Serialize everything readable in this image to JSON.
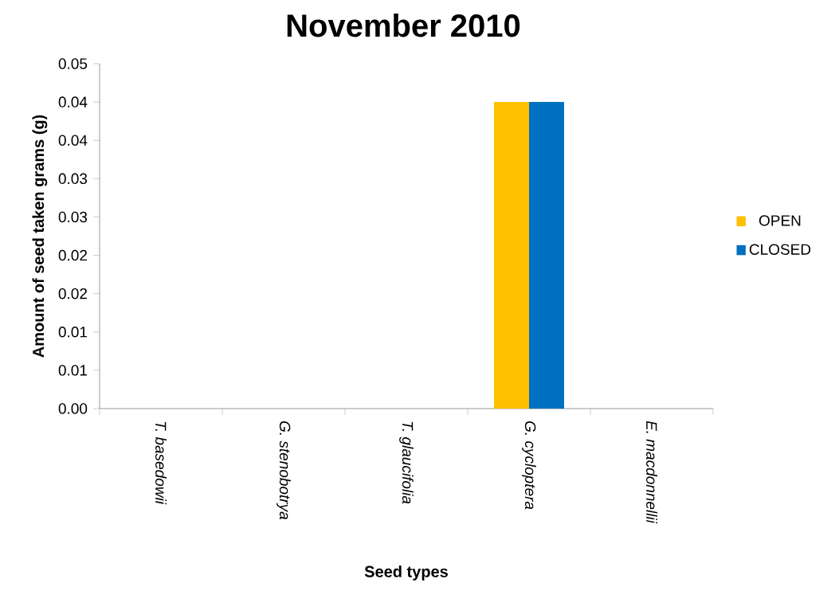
{
  "chart_data": {
    "type": "bar",
    "title": "November 2010",
    "xlabel": "Seed types",
    "ylabel": "Amount of seed taken grams (g)",
    "categories": [
      "*T. basedowii*",
      "*G. stenobotrya*",
      "*T. glaucifolia*",
      "*G. cycloptera*",
      "*E. macdonnellii*"
    ],
    "series": [
      {
        "name": "OPEN",
        "color": "#ffc000",
        "values": [
          0,
          0,
          0,
          0.04,
          0
        ]
      },
      {
        "name": "CLOSED",
        "color": "#0070c0",
        "values": [
          0,
          0,
          0,
          0.04,
          0
        ]
      }
    ],
    "ylim": [
      0,
      0.045
    ],
    "yticks": [
      {
        "value": 0,
        "label": "0.00"
      },
      {
        "value": 0.005,
        "label": "0.01"
      },
      {
        "value": 0.01,
        "label": "0.01"
      },
      {
        "value": 0.015,
        "label": "0.02"
      },
      {
        "value": 0.02,
        "label": "0.02"
      },
      {
        "value": 0.025,
        "label": "0.03"
      },
      {
        "value": 0.03,
        "label": "0.03"
      },
      {
        "value": 0.035,
        "label": "0.04"
      },
      {
        "value": 0.04,
        "label": "0.04"
      },
      {
        "value": 0.045,
        "label": "0.05"
      }
    ],
    "legend": "right",
    "grid": false
  }
}
